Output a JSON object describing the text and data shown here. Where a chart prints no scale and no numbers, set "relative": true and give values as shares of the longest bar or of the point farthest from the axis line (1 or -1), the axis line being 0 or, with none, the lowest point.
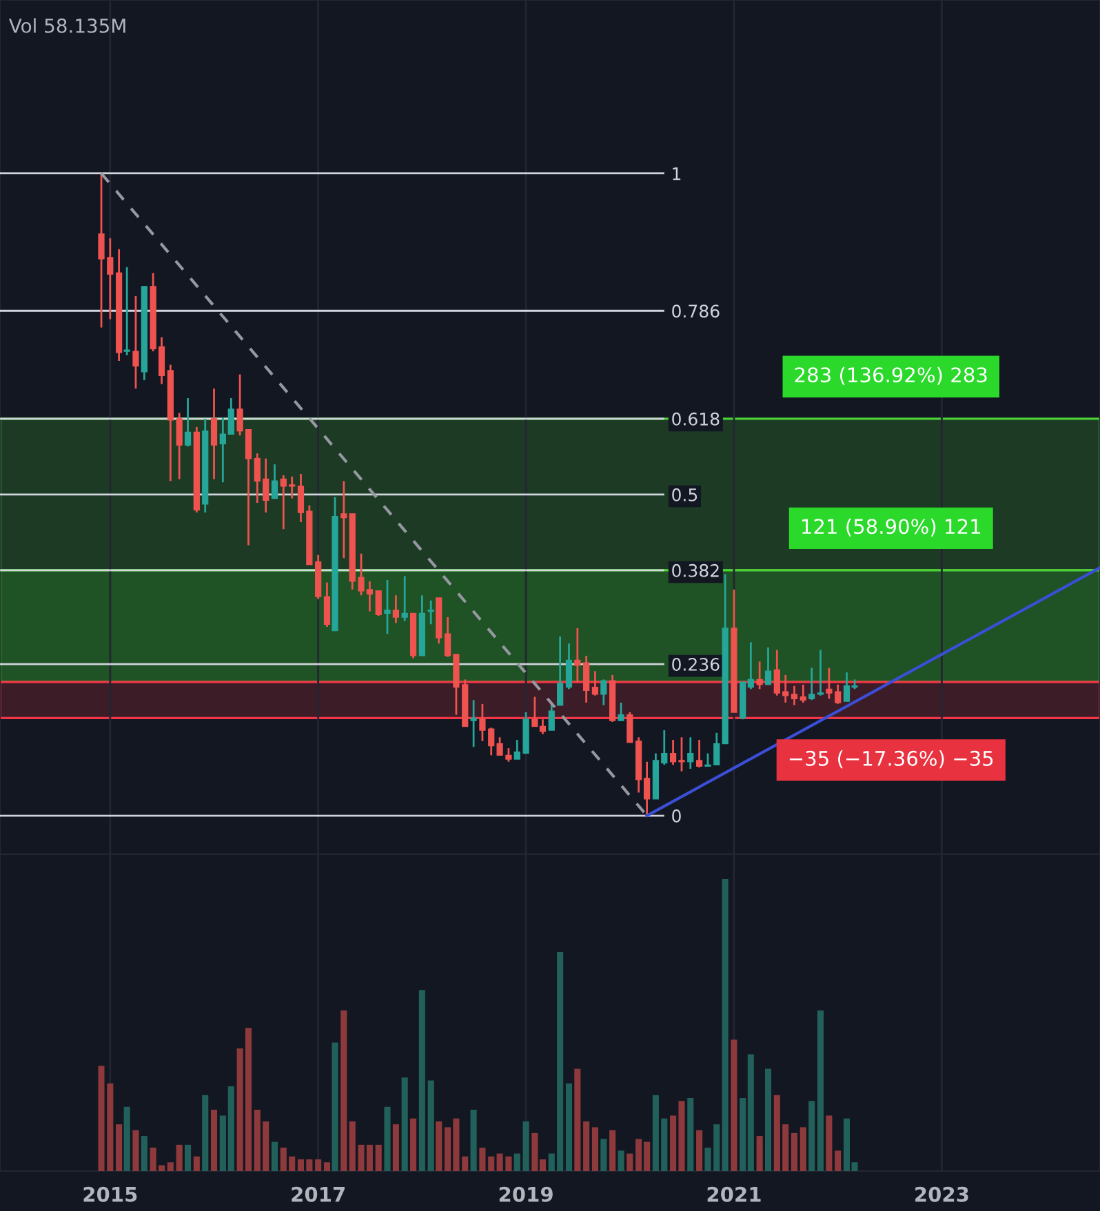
{
  "chart_data": [
    {
      "type": "candlestick",
      "ylim": [
        -0.06,
        1.27
      ],
      "yticks": [
        0,
        0.236,
        0.382,
        0.5,
        0.618,
        0.786,
        1
      ],
      "x": [
        "2014-12",
        "2015-01",
        "2015-02",
        "2015-03",
        "2015-04",
        "2015-05",
        "2015-06",
        "2015-07",
        "2015-08",
        "2015-09",
        "2015-10",
        "2015-11",
        "2015-12",
        "2016-01",
        "2016-02",
        "2016-03",
        "2016-04",
        "2016-05",
        "2016-06",
        "2016-07",
        "2016-08",
        "2016-09",
        "2016-10",
        "2016-11",
        "2016-12",
        "2017-01",
        "2017-02",
        "2017-03",
        "2017-04",
        "2017-05",
        "2017-06",
        "2017-07",
        "2017-08",
        "2017-09",
        "2017-10",
        "2017-11",
        "2017-12",
        "2018-01",
        "2018-02",
        "2018-03",
        "2018-04",
        "2018-05",
        "2018-06",
        "2018-07",
        "2018-08",
        "2018-09",
        "2018-10",
        "2018-11",
        "2018-12",
        "2019-01",
        "2019-02",
        "2019-03",
        "2019-04",
        "2019-05",
        "2019-06",
        "2019-07",
        "2019-08",
        "2019-09",
        "2019-10",
        "2019-11",
        "2019-12",
        "2020-01",
        "2020-02",
        "2020-03",
        "2020-04",
        "2020-05",
        "2020-06",
        "2020-07",
        "2020-08",
        "2020-09",
        "2020-10",
        "2020-11",
        "2020-12",
        "2021-01",
        "2021-02",
        "2021-03",
        "2021-04",
        "2021-05",
        "2021-06",
        "2021-07",
        "2021-08",
        "2021-09",
        "2021-10",
        "2021-11",
        "2021-12",
        "2022-01",
        "2022-02",
        "2022-03"
      ],
      "ohlc": [
        [
          0.906,
          1.0,
          0.76,
          0.867
        ],
        [
          0.869,
          0.899,
          0.773,
          0.843
        ],
        [
          0.845,
          0.882,
          0.708,
          0.721
        ],
        [
          0.723,
          0.854,
          0.717,
          0.725
        ],
        [
          0.723,
          0.809,
          0.665,
          0.7
        ],
        [
          0.691,
          0.824,
          0.678,
          0.824
        ],
        [
          0.824,
          0.845,
          0.723,
          0.727
        ],
        [
          0.73,
          0.745,
          0.672,
          0.685
        ],
        [
          0.693,
          0.702,
          0.521,
          0.616
        ],
        [
          0.618,
          0.627,
          0.524,
          0.577
        ],
        [
          0.577,
          0.65,
          0.575,
          0.597
        ],
        [
          0.597,
          0.605,
          0.472,
          0.476
        ],
        [
          0.485,
          0.618,
          0.472,
          0.599
        ],
        [
          0.618,
          0.665,
          0.524,
          0.577
        ],
        [
          0.579,
          0.62,
          0.519,
          0.594
        ],
        [
          0.594,
          0.65,
          0.594,
          0.633
        ],
        [
          0.633,
          0.687,
          0.592,
          0.599
        ],
        [
          0.601,
          0.601,
          0.421,
          0.556
        ],
        [
          0.556,
          0.564,
          0.487,
          0.521
        ],
        [
          0.524,
          0.556,
          0.472,
          0.491
        ],
        [
          0.494,
          0.547,
          0.494,
          0.521
        ],
        [
          0.524,
          0.53,
          0.446,
          0.513
        ],
        [
          0.515,
          0.528,
          0.494,
          0.513
        ],
        [
          0.513,
          0.532,
          0.457,
          0.472
        ],
        [
          0.474,
          0.483,
          0.391,
          0.391
        ],
        [
          0.395,
          0.406,
          0.337,
          0.341
        ],
        [
          0.341,
          0.363,
          0.294,
          0.298
        ],
        [
          0.288,
          0.496,
          0.288,
          0.466
        ],
        [
          0.47,
          0.521,
          0.401,
          0.464
        ],
        [
          0.47,
          0.47,
          0.352,
          0.365
        ],
        [
          0.371,
          0.408,
          0.343,
          0.35
        ],
        [
          0.352,
          0.365,
          0.318,
          0.345
        ],
        [
          0.35,
          0.35,
          0.311,
          0.313
        ],
        [
          0.315,
          0.367,
          0.283,
          0.32
        ],
        [
          0.32,
          0.343,
          0.3,
          0.309
        ],
        [
          0.309,
          0.373,
          0.303,
          0.315
        ],
        [
          0.315,
          0.315,
          0.245,
          0.249
        ],
        [
          0.249,
          0.343,
          0.249,
          0.315
        ],
        [
          0.318,
          0.335,
          0.298,
          0.32
        ],
        [
          0.339,
          0.339,
          0.268,
          0.277
        ],
        [
          0.283,
          0.309,
          0.247,
          0.249
        ],
        [
          0.251,
          0.251,
          0.157,
          0.2
        ],
        [
          0.204,
          0.212,
          0.139,
          0.139
        ],
        [
          0.148,
          0.18,
          0.107,
          0.152
        ],
        [
          0.15,
          0.174,
          0.116,
          0.133
        ],
        [
          0.135,
          0.137,
          0.094,
          0.109
        ],
        [
          0.112,
          0.122,
          0.094,
          0.094
        ],
        [
          0.094,
          0.105,
          0.084,
          0.088
        ],
        [
          0.088,
          0.118,
          0.088,
          0.099
        ],
        [
          0.097,
          0.161,
          0.097,
          0.15
        ],
        [
          0.15,
          0.185,
          0.139,
          0.139
        ],
        [
          0.139,
          0.15,
          0.127,
          0.131
        ],
        [
          0.133,
          0.176,
          0.133,
          0.163
        ],
        [
          0.172,
          0.279,
          0.172,
          0.206
        ],
        [
          0.2,
          0.268,
          0.197,
          0.242
        ],
        [
          0.242,
          0.292,
          0.208,
          0.234
        ],
        [
          0.238,
          0.249,
          0.176,
          0.195
        ],
        [
          0.2,
          0.225,
          0.187,
          0.189
        ],
        [
          0.189,
          0.212,
          0.172,
          0.21
        ],
        [
          0.21,
          0.219,
          0.146,
          0.148
        ],
        [
          0.148,
          0.176,
          0.148,
          0.157
        ],
        [
          0.157,
          0.161,
          0.114,
          0.114
        ],
        [
          0.116,
          0.122,
          0.036,
          0.056
        ],
        [
          0.058,
          0.084,
          0.0,
          0.026
        ],
        [
          0.026,
          0.097,
          0.026,
          0.086
        ],
        [
          0.082,
          0.133,
          0.079,
          0.097
        ],
        [
          0.097,
          0.118,
          0.079,
          0.084
        ],
        [
          0.086,
          0.122,
          0.069,
          0.084
        ],
        [
          0.084,
          0.122,
          0.073,
          0.097
        ],
        [
          0.086,
          0.118,
          0.075,
          0.077
        ],
        [
          0.077,
          0.097,
          0.077,
          0.079
        ],
        [
          0.079,
          0.129,
          0.079,
          0.112
        ],
        [
          0.112,
          0.376,
          0.112,
          0.292
        ],
        [
          0.292,
          0.352,
          0.161,
          0.161
        ],
        [
          0.152,
          0.208,
          0.15,
          0.208
        ],
        [
          0.2,
          0.27,
          0.197,
          0.212
        ],
        [
          0.212,
          0.24,
          0.197,
          0.204
        ],
        [
          0.204,
          0.262,
          0.204,
          0.225
        ],
        [
          0.227,
          0.258,
          0.187,
          0.191
        ],
        [
          0.193,
          0.219,
          0.176,
          0.187
        ],
        [
          0.189,
          0.202,
          0.172,
          0.182
        ],
        [
          0.185,
          0.204,
          0.176,
          0.18
        ],
        [
          0.182,
          0.23,
          0.18,
          0.189
        ],
        [
          0.189,
          0.258,
          0.187,
          0.191
        ],
        [
          0.197,
          0.23,
          0.182,
          0.191
        ],
        [
          0.193,
          0.204,
          0.174,
          0.176
        ],
        [
          0.178,
          0.223,
          0.178,
          0.202
        ],
        [
          0.2,
          0.212,
          0.197,
          0.202
        ]
      ],
      "colors": [
        "#ef5350",
        "#ef5350",
        "#ef5350",
        "#26a69a",
        "#ef5350",
        "#26a69a",
        "#ef5350",
        "#ef5350",
        "#ef5350",
        "#ef5350",
        "#26a69a",
        "#ef5350",
        "#26a69a",
        "#ef5350",
        "#26a69a",
        "#26a69a",
        "#ef5350",
        "#ef5350",
        "#ef5350",
        "#ef5350",
        "#26a69a",
        "#ef5350",
        "#ef5350",
        "#ef5350",
        "#ef5350",
        "#ef5350",
        "#ef5350",
        "#26a69a",
        "#ef5350",
        "#ef5350",
        "#ef5350",
        "#ef5350",
        "#ef5350",
        "#26a69a",
        "#ef5350",
        "#26a69a",
        "#ef5350",
        "#26a69a",
        "#26a69a",
        "#ef5350",
        "#ef5350",
        "#ef5350",
        "#ef5350",
        "#26a69a",
        "#ef5350",
        "#ef5350",
        "#ef5350",
        "#ef5350",
        "#26a69a",
        "#26a69a",
        "#ef5350",
        "#ef5350",
        "#26a69a",
        "#26a69a",
        "#26a69a",
        "#ef5350",
        "#ef5350",
        "#ef5350",
        "#26a69a",
        "#ef5350",
        "#26a69a",
        "#ef5350",
        "#ef5350",
        "#ef5350",
        "#26a69a",
        "#26a69a",
        "#ef5350",
        "#ef5350",
        "#26a69a",
        "#ef5350",
        "#26a69a",
        "#26a69a",
        "#26a69a",
        "#ef5350",
        "#26a69a",
        "#26a69a",
        "#ef5350",
        "#26a69a",
        "#ef5350",
        "#ef5350",
        "#ef5350",
        "#ef5350",
        "#26a69a",
        "#26a69a",
        "#ef5350",
        "#ef5350",
        "#26a69a",
        "#26a69a"
      ],
      "series": [
        {
          "type": "line",
          "x": [
            "2014-12",
            "2020-03"
          ],
          "values": [
            1.0,
            0.0
          ],
          "color": "#9598a1",
          "line_style": "dashed"
        },
        {
          "type": "line",
          "x": [
            "2020-03",
            "2024-07-10"
          ],
          "values": [
            0.0,
            0.386
          ],
          "color": "#3b4fd6",
          "line_style": "solid"
        }
      ],
      "ref_lines": [
        {
          "axis": "y",
          "value": 1,
          "color": "#d1d4dc"
        },
        {
          "axis": "y",
          "value": 0.786,
          "color": "#d1d4dc"
        },
        {
          "axis": "y",
          "value": 0.618,
          "color": "#d1d4dc"
        },
        {
          "axis": "y",
          "value": 0.5,
          "color": "#d1d4dc"
        },
        {
          "axis": "y",
          "value": 0.382,
          "color": "#d1d4dc"
        },
        {
          "axis": "y",
          "value": 0.236,
          "color": "#d1d4dc"
        },
        {
          "axis": "y",
          "value": 0,
          "color": "#d1d4dc"
        }
      ],
      "bands": [
        {
          "axis": "y",
          "from": 0.382,
          "to": 0.618,
          "label": "283 (136.92%) 283",
          "color": "#1d3b24"
        },
        {
          "axis": "y",
          "from": 0.208,
          "to": 0.382,
          "label": "121 (58.90%) 121",
          "color": "#1f5224"
        },
        {
          "axis": "y",
          "from": 0.152,
          "to": 0.208,
          "label": "−35 (−17.36%) −35",
          "color": "#3b1c27"
        }
      ],
      "xlim": [
        "2013-12-10",
        "2024-07-10"
      ],
      "xticks": [
        "2015",
        "2017",
        "2019",
        "2021",
        "2023"
      ],
      "grid": "x",
      "tick_labels": "y"
    },
    {
      "type": "bar",
      "relative": true,
      "title": "Vol 58.135M",
      "x": [
        "2014-12",
        "2015-01",
        "2015-02",
        "2015-03",
        "2015-04",
        "2015-05",
        "2015-06",
        "2015-07",
        "2015-08",
        "2015-09",
        "2015-10",
        "2015-11",
        "2015-12",
        "2016-01",
        "2016-02",
        "2016-03",
        "2016-04",
        "2016-05",
        "2016-06",
        "2016-07",
        "2016-08",
        "2016-09",
        "2016-10",
        "2016-11",
        "2016-12",
        "2017-01",
        "2017-02",
        "2017-03",
        "2017-04",
        "2017-05",
        "2017-06",
        "2017-07",
        "2017-08",
        "2017-09",
        "2017-10",
        "2017-11",
        "2017-12",
        "2018-01",
        "2018-02",
        "2018-03",
        "2018-04",
        "2018-05",
        "2018-06",
        "2018-07",
        "2018-08",
        "2018-09",
        "2018-10",
        "2018-11",
        "2018-12",
        "2019-01",
        "2019-02",
        "2019-03",
        "2019-04",
        "2019-05",
        "2019-06",
        "2019-07",
        "2019-08",
        "2019-09",
        "2019-10",
        "2019-11",
        "2019-12",
        "2020-01",
        "2020-02",
        "2020-03",
        "2020-04",
        "2020-05",
        "2020-06",
        "2020-07",
        "2020-08",
        "2020-09",
        "2020-10",
        "2020-11",
        "2020-12",
        "2021-01",
        "2021-02",
        "2021-03",
        "2021-04",
        "2021-05",
        "2021-06",
        "2021-07",
        "2021-08",
        "2021-09",
        "2021-10",
        "2021-11",
        "2021-12",
        "2022-01",
        "2022-02",
        "2022-03"
      ],
      "values": [
        0.36,
        0.3,
        0.16,
        0.22,
        0.14,
        0.12,
        0.08,
        0.02,
        0.03,
        0.09,
        0.09,
        0.05,
        0.26,
        0.21,
        0.19,
        0.29,
        0.42,
        0.49,
        0.21,
        0.17,
        0.1,
        0.08,
        0.05,
        0.04,
        0.04,
        0.04,
        0.03,
        0.44,
        0.55,
        0.17,
        0.09,
        0.09,
        0.09,
        0.22,
        0.16,
        0.32,
        0.18,
        0.62,
        0.31,
        0.17,
        0.15,
        0.18,
        0.05,
        0.21,
        0.08,
        0.05,
        0.06,
        0.05,
        0.06,
        0.17,
        0.13,
        0.04,
        0.06,
        0.75,
        0.3,
        0.35,
        0.17,
        0.15,
        0.11,
        0.14,
        0.07,
        0.06,
        0.11,
        0.1,
        0.26,
        0.18,
        0.19,
        0.24,
        0.25,
        0.14,
        0.08,
        0.16,
        1,
        0.45,
        0.25,
        0.4,
        0.12,
        0.35,
        0.26,
        0.16,
        0.13,
        0.15,
        0.24,
        0.55,
        0.19,
        0.07,
        0.18,
        0.03
      ],
      "colors": [
        "#8e3a3c",
        "#8e3a3c",
        "#8e3a3c",
        "#22615b",
        "#8e3a3c",
        "#22615b",
        "#8e3a3c",
        "#8e3a3c",
        "#8e3a3c",
        "#8e3a3c",
        "#22615b",
        "#8e3a3c",
        "#22615b",
        "#8e3a3c",
        "#22615b",
        "#22615b",
        "#8e3a3c",
        "#8e3a3c",
        "#8e3a3c",
        "#8e3a3c",
        "#22615b",
        "#8e3a3c",
        "#8e3a3c",
        "#8e3a3c",
        "#8e3a3c",
        "#8e3a3c",
        "#8e3a3c",
        "#22615b",
        "#8e3a3c",
        "#8e3a3c",
        "#8e3a3c",
        "#8e3a3c",
        "#8e3a3c",
        "#22615b",
        "#8e3a3c",
        "#22615b",
        "#8e3a3c",
        "#22615b",
        "#22615b",
        "#8e3a3c",
        "#8e3a3c",
        "#8e3a3c",
        "#8e3a3c",
        "#22615b",
        "#8e3a3c",
        "#8e3a3c",
        "#8e3a3c",
        "#8e3a3c",
        "#22615b",
        "#22615b",
        "#8e3a3c",
        "#8e3a3c",
        "#22615b",
        "#22615b",
        "#22615b",
        "#8e3a3c",
        "#8e3a3c",
        "#8e3a3c",
        "#22615b",
        "#8e3a3c",
        "#22615b",
        "#8e3a3c",
        "#8e3a3c",
        "#8e3a3c",
        "#22615b",
        "#22615b",
        "#8e3a3c",
        "#8e3a3c",
        "#22615b",
        "#8e3a3c",
        "#22615b",
        "#22615b",
        "#22615b",
        "#8e3a3c",
        "#22615b",
        "#22615b",
        "#8e3a3c",
        "#22615b",
        "#8e3a3c",
        "#8e3a3c",
        "#8e3a3c",
        "#8e3a3c",
        "#22615b",
        "#22615b",
        "#8e3a3c",
        "#8e3a3c",
        "#22615b",
        "#22615b"
      ],
      "xlim": [
        "2013-12-10",
        "2024-07-10"
      ],
      "xticks": [
        "2015",
        "2017",
        "2019",
        "2021",
        "2023"
      ],
      "grid": "x",
      "tick_labels": "x"
    }
  ]
}
